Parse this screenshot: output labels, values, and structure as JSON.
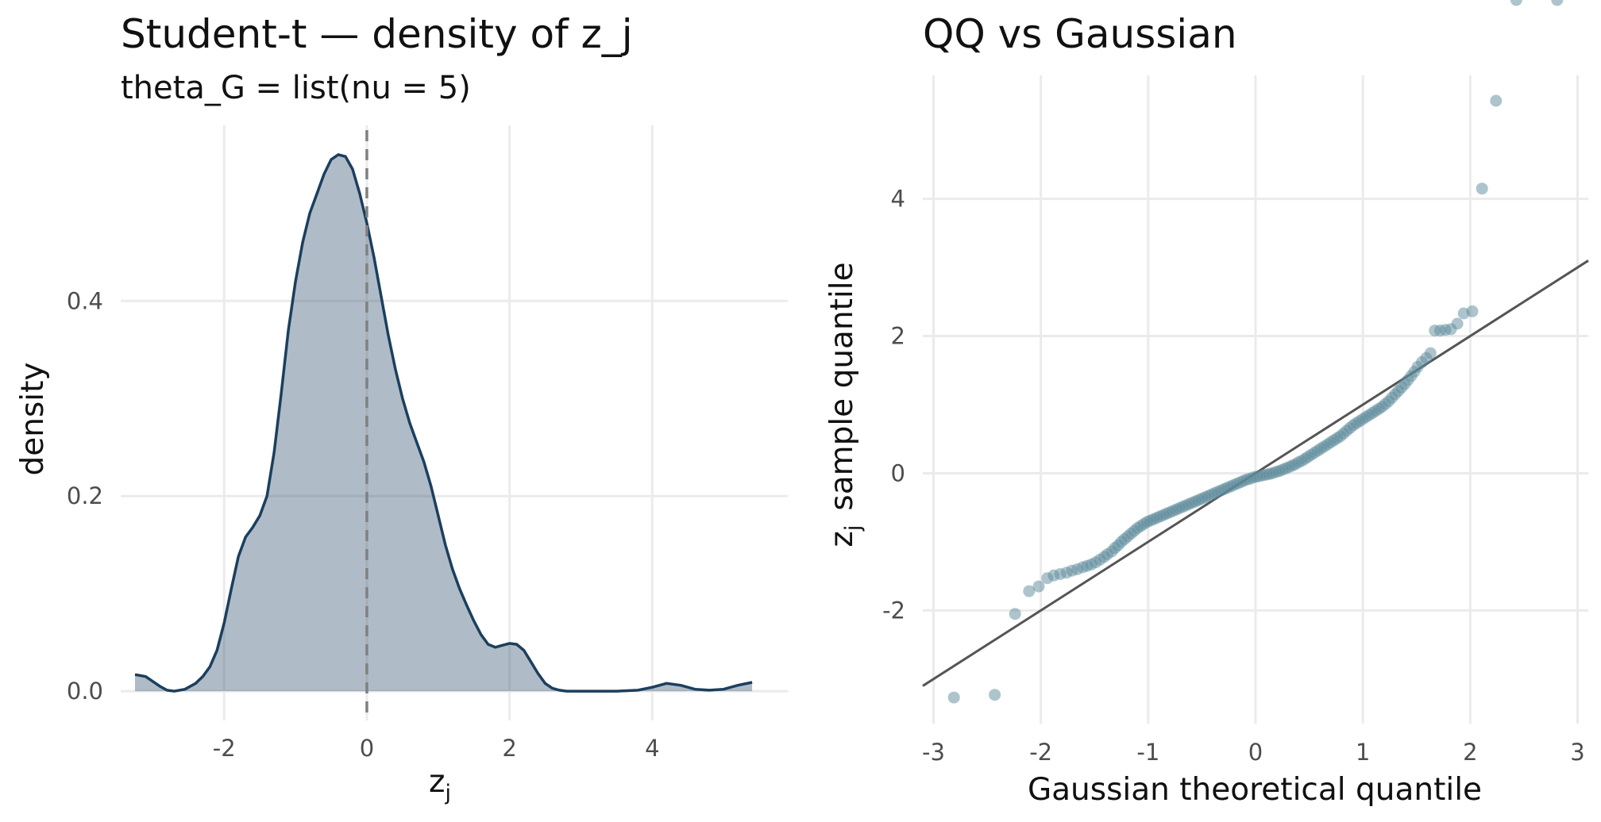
{
  "chart_data": [
    {
      "type": "area",
      "title": "Student-t — density of z_j",
      "subtitle": "theta_G = list(nu = 5)",
      "xlabel": "z",
      "xlabel_sub": "j",
      "ylabel": "density",
      "xlim": [
        -3.45,
        5.9
      ],
      "ylim": [
        -0.03,
        0.58
      ],
      "xticks": [
        -2,
        0,
        2,
        4
      ],
      "xtick_labels": [
        "-2",
        "0",
        "2",
        "4"
      ],
      "yticks": [
        0,
        0.2,
        0.4
      ],
      "ytick_labels": [
        "0.0",
        "0.2",
        "0.4"
      ],
      "reference_line": {
        "x": 0,
        "style": "dashed",
        "color": "#808080"
      },
      "fill_color": "#1b3f5e",
      "line_color": "#1b3f5e",
      "grid": true,
      "x": [
        -3.25,
        -3.1,
        -3.0,
        -2.9,
        -2.8,
        -2.7,
        -2.55,
        -2.4,
        -2.3,
        -2.2,
        -2.1,
        -2.0,
        -1.9,
        -1.8,
        -1.7,
        -1.6,
        -1.5,
        -1.4,
        -1.3,
        -1.2,
        -1.1,
        -1.0,
        -0.9,
        -0.8,
        -0.7,
        -0.6,
        -0.5,
        -0.4,
        -0.3,
        -0.2,
        -0.1,
        0.0,
        0.1,
        0.2,
        0.3,
        0.4,
        0.5,
        0.6,
        0.7,
        0.8,
        0.9,
        1.0,
        1.1,
        1.2,
        1.3,
        1.4,
        1.5,
        1.6,
        1.7,
        1.8,
        1.9,
        2.0,
        2.1,
        2.2,
        2.3,
        2.4,
        2.5,
        2.6,
        2.7,
        2.8,
        2.9,
        3.0,
        3.2,
        3.5,
        3.8,
        4.0,
        4.2,
        4.4,
        4.6,
        4.8,
        5.0,
        5.2,
        5.4
      ],
      "y": [
        0.017,
        0.015,
        0.01,
        0.005,
        0.001,
        0.0,
        0.002,
        0.008,
        0.015,
        0.025,
        0.042,
        0.07,
        0.105,
        0.138,
        0.158,
        0.168,
        0.18,
        0.2,
        0.245,
        0.305,
        0.37,
        0.42,
        0.46,
        0.49,
        0.51,
        0.53,
        0.545,
        0.55,
        0.548,
        0.535,
        0.51,
        0.48,
        0.445,
        0.405,
        0.365,
        0.33,
        0.3,
        0.275,
        0.255,
        0.235,
        0.21,
        0.18,
        0.15,
        0.125,
        0.105,
        0.088,
        0.072,
        0.058,
        0.048,
        0.045,
        0.047,
        0.049,
        0.048,
        0.042,
        0.03,
        0.018,
        0.008,
        0.003,
        0.001,
        0.0,
        0.0,
        0.0,
        0.0,
        0.0,
        0.001,
        0.004,
        0.008,
        0.006,
        0.002,
        0.001,
        0.002,
        0.006,
        0.009
      ]
    },
    {
      "type": "scatter",
      "title": "QQ vs Gaussian",
      "xlabel": "Gaussian theoretical quantile",
      "ylabel": "sample quantile",
      "ylabel_prefix": "z",
      "ylabel_sub": "j",
      "xlim": [
        -3.1,
        3.1
      ],
      "ylim": [
        -3.65,
        5.8
      ],
      "xticks": [
        -3,
        -2,
        -1,
        0,
        1,
        2,
        3
      ],
      "xtick_labels": [
        "-3",
        "-2",
        "-1",
        "0",
        "1",
        "2",
        "3"
      ],
      "yticks": [
        -2,
        0,
        2,
        4
      ],
      "ytick_labels": [
        "-2",
        "0",
        "2",
        "4"
      ],
      "point_color": "#5b8a99",
      "line_color": "#555555",
      "grid": true,
      "reference_line": {
        "intercept": 0,
        "slope": 1
      },
      "points_x": [
        -2.81,
        -2.43,
        -2.24,
        -2.11,
        -2.02,
        -1.94,
        -1.88,
        -1.82,
        -1.76,
        -1.71,
        -1.66,
        -1.61,
        -1.57,
        -1.53,
        -1.49,
        -1.45,
        -1.41,
        -1.38,
        -1.34,
        -1.31,
        -1.28,
        -1.25,
        -1.22,
        -1.19,
        -1.16,
        -1.13,
        -1.1,
        -1.07,
        -1.04,
        -1.01,
        -0.98,
        -0.95,
        -0.92,
        -0.89,
        -0.86,
        -0.83,
        -0.8,
        -0.77,
        -0.74,
        -0.71,
        -0.68,
        -0.65,
        -0.62,
        -0.59,
        -0.56,
        -0.53,
        -0.5,
        -0.47,
        -0.44,
        -0.41,
        -0.38,
        -0.35,
        -0.32,
        -0.29,
        -0.26,
        -0.23,
        -0.2,
        -0.17,
        -0.14,
        -0.11,
        -0.08,
        -0.05,
        -0.02,
        0.01,
        0.04,
        0.07,
        0.1,
        0.13,
        0.16,
        0.19,
        0.22,
        0.25,
        0.28,
        0.31,
        0.34,
        0.37,
        0.4,
        0.43,
        0.46,
        0.49,
        0.52,
        0.55,
        0.58,
        0.61,
        0.64,
        0.67,
        0.7,
        0.73,
        0.76,
        0.79,
        0.82,
        0.85,
        0.88,
        0.91,
        0.94,
        0.97,
        1.0,
        1.03,
        1.06,
        1.09,
        1.12,
        1.15,
        1.18,
        1.21,
        1.24,
        1.27,
        1.3,
        1.33,
        1.36,
        1.39,
        1.42,
        1.45,
        1.48,
        1.51,
        1.55,
        1.59,
        1.63,
        1.67,
        1.72,
        1.77,
        1.82,
        1.88,
        1.94,
        2.02,
        2.11,
        2.24,
        2.43,
        2.81
      ],
      "points_y": [
        -3.27,
        -3.23,
        -2.05,
        -1.72,
        -1.65,
        -1.53,
        -1.49,
        -1.47,
        -1.45,
        -1.42,
        -1.4,
        -1.37,
        -1.35,
        -1.33,
        -1.3,
        -1.26,
        -1.22,
        -1.18,
        -1.14,
        -1.09,
        -1.05,
        -1.0,
        -0.96,
        -0.92,
        -0.88,
        -0.84,
        -0.8,
        -0.77,
        -0.74,
        -0.71,
        -0.69,
        -0.67,
        -0.65,
        -0.63,
        -0.61,
        -0.59,
        -0.57,
        -0.55,
        -0.53,
        -0.51,
        -0.49,
        -0.47,
        -0.45,
        -0.43,
        -0.41,
        -0.39,
        -0.37,
        -0.35,
        -0.33,
        -0.31,
        -0.29,
        -0.27,
        -0.25,
        -0.23,
        -0.21,
        -0.19,
        -0.17,
        -0.15,
        -0.13,
        -0.11,
        -0.09,
        -0.08,
        -0.06,
        -0.05,
        -0.04,
        -0.03,
        -0.02,
        -0.01,
        0.0,
        0.02,
        0.03,
        0.05,
        0.07,
        0.09,
        0.11,
        0.13,
        0.16,
        0.18,
        0.21,
        0.24,
        0.27,
        0.3,
        0.33,
        0.36,
        0.39,
        0.42,
        0.45,
        0.48,
        0.51,
        0.54,
        0.58,
        0.62,
        0.66,
        0.7,
        0.73,
        0.76,
        0.79,
        0.82,
        0.85,
        0.88,
        0.91,
        0.94,
        0.97,
        1.01,
        1.05,
        1.1,
        1.15,
        1.2,
        1.25,
        1.3,
        1.36,
        1.42,
        1.48,
        1.55,
        1.62,
        1.68,
        1.75,
        2.08,
        2.08,
        2.09,
        2.1,
        2.18,
        2.33,
        2.36,
        4.15,
        5.43
      ]
    }
  ]
}
